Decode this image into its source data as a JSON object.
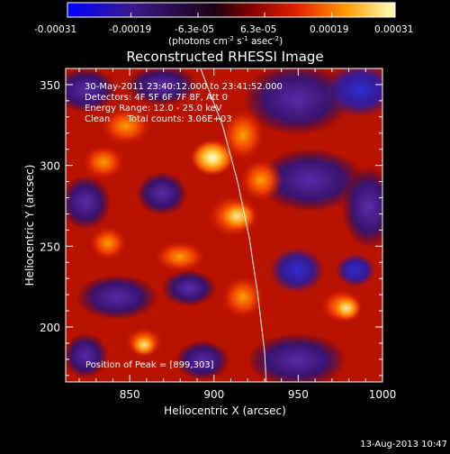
{
  "colorbar": {
    "tick_labels": [
      "-0.00031",
      "-0.00019",
      "-6.3e-05",
      "6.3e-05",
      "0.00019",
      "0.00031"
    ],
    "unit_label": "(photons cm",
    "unit_sup1": "-2",
    "unit_mid": " s",
    "unit_sup2": "-1",
    "unit_mid2": " asec",
    "unit_sup3": "-2",
    "unit_end": ")",
    "range": [
      -0.00031,
      0.00031
    ]
  },
  "chart_data": {
    "type": "heatmap",
    "title": "Reconstructed RHESSI Image",
    "xlabel": "Heliocentric X (arcsec)",
    "ylabel": "Heliocentric Y (arcsec)",
    "xlim": [
      812,
      1000
    ],
    "ylim": [
      166,
      360
    ],
    "xticks": [
      850,
      900,
      950,
      1000
    ],
    "yticks": [
      200,
      250,
      300,
      350
    ],
    "colormap": "rainbow-like: blue-purple (negative) to red-orange-yellow-white (positive)",
    "peak": [
      899,
      303
    ],
    "info_lines": [
      "30-May-2011 23:40:12.000 to 23:41:52.000",
      "Detectors: 4F 5F 6F 7F 8F, Att 0",
      "Energy Range: 12.0 - 25.0 keV",
      "Clean      Total counts: 3.06E+03"
    ],
    "peak_label": "Position of Peak = [899,303]",
    "limb_curve": [
      [
        892,
        360
      ],
      [
        905,
        325
      ],
      [
        914,
        290
      ],
      [
        921,
        255
      ],
      [
        926,
        220
      ],
      [
        930,
        185
      ],
      [
        931,
        166
      ]
    ]
  },
  "footer": {
    "timestamp": "13-Aug-2013 10:47"
  }
}
